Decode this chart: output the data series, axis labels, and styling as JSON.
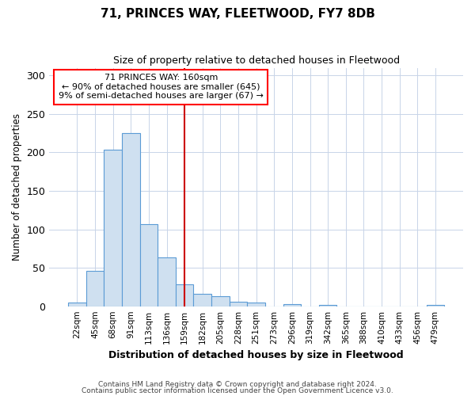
{
  "title": "71, PRINCES WAY, FLEETWOOD, FY7 8DB",
  "subtitle": "Size of property relative to detached houses in Fleetwood",
  "xlabel": "Distribution of detached houses by size in Fleetwood",
  "ylabel": "Number of detached properties",
  "bar_color": "#cfe0f0",
  "bar_edge_color": "#5b9bd5",
  "categories": [
    "22sqm",
    "45sqm",
    "68sqm",
    "91sqm",
    "113sqm",
    "136sqm",
    "159sqm",
    "182sqm",
    "205sqm",
    "228sqm",
    "251sqm",
    "273sqm",
    "296sqm",
    "319sqm",
    "342sqm",
    "365sqm",
    "388sqm",
    "410sqm",
    "433sqm",
    "456sqm",
    "479sqm"
  ],
  "values": [
    5,
    46,
    204,
    225,
    107,
    63,
    29,
    16,
    13,
    6,
    5,
    0,
    3,
    0,
    2,
    0,
    0,
    0,
    0,
    0,
    2
  ],
  "ylim": [
    0,
    310
  ],
  "yticks": [
    0,
    50,
    100,
    150,
    200,
    250,
    300
  ],
  "vline_index": 6,
  "vline_color": "#cc0000",
  "annotation_line1": "71 PRINCES WAY: 160sqm",
  "annotation_line2": "← 90% of detached houses are smaller (645)",
  "annotation_line3": "9% of semi-detached houses are larger (67) →",
  "grid_color": "#c8d4e8",
  "background_color": "#ffffff",
  "footer1": "Contains HM Land Registry data © Crown copyright and database right 2024.",
  "footer2": "Contains public sector information licensed under the Open Government Licence v3.0."
}
